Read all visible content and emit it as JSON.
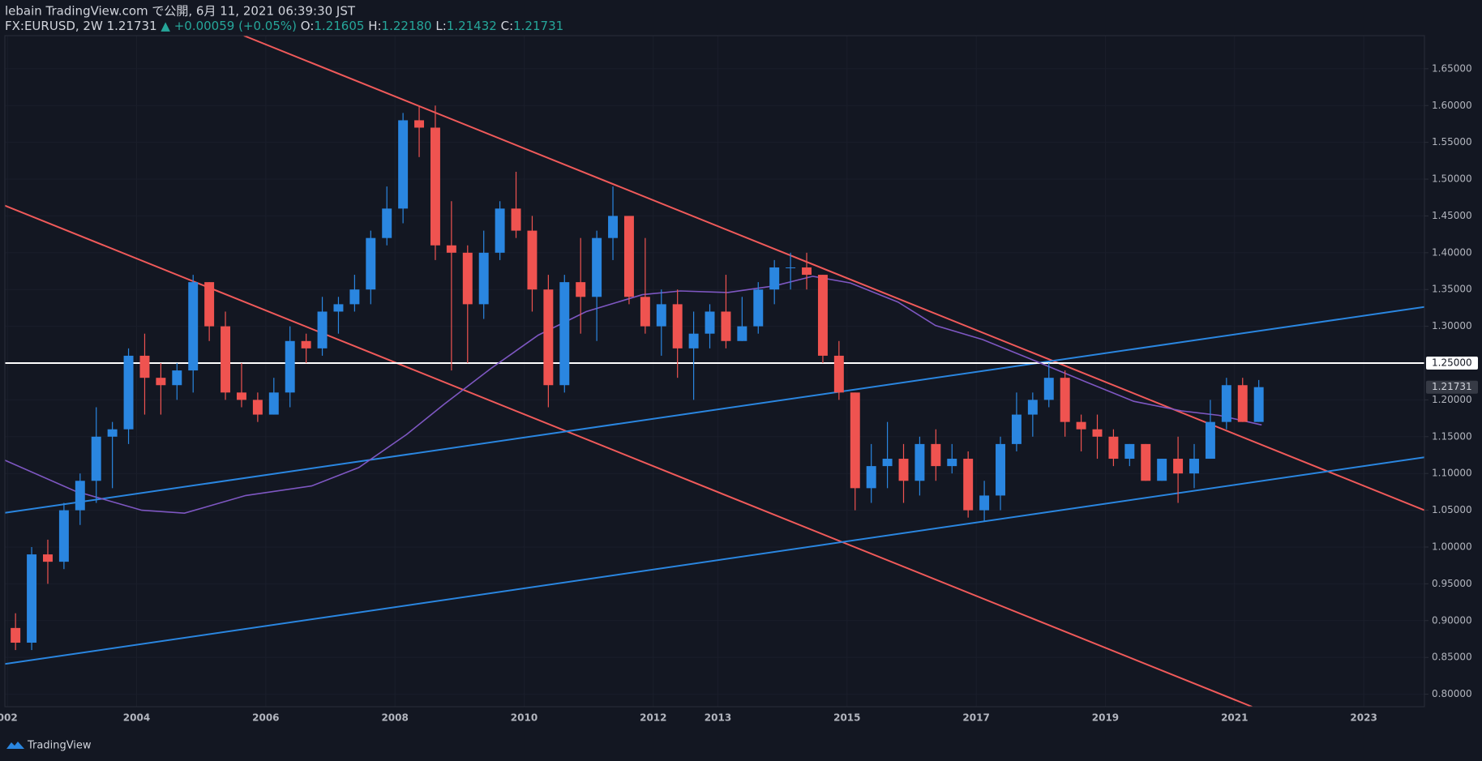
{
  "chart_data": {
    "type": "candlestick",
    "title": "lebain TradingView.com で公開, 6月 11, 2021 06:39:30 JST",
    "header": {
      "symbol": "FX:EURUSD, 2W",
      "price": "1.21731",
      "change": "▲ +0.00059 (+0.05%)",
      "ohlc": [
        {
          "label": "O:",
          "value": "1.21605"
        },
        {
          "label": "H:",
          "value": "1.22180"
        },
        {
          "label": "L:",
          "value": "1.21432"
        },
        {
          "label": "C:",
          "value": "1.21731"
        }
      ]
    },
    "brand": "TradingView",
    "up_color": "#2a86e0",
    "down_color": "#ef5350",
    "xlim": [
      2001.96,
      2023.94
    ],
    "ylim": [
      0.783,
      1.695
    ],
    "grid": true,
    "xticks": [
      {
        "value": 2002,
        "label": "002"
      },
      2004,
      2006,
      2008,
      2010,
      2012,
      2013,
      2015,
      2017,
      2019,
      2021,
      2023
    ],
    "yticks": [
      {
        "value": 0.8,
        "label": "0.80000"
      },
      {
        "value": 0.85,
        "label": "0.85000"
      },
      {
        "value": 0.9,
        "label": "0.90000"
      },
      {
        "value": 0.95,
        "label": "0.95000"
      },
      {
        "value": 1.0,
        "label": "1.00000"
      },
      {
        "value": 1.05,
        "label": "1.05000"
      },
      {
        "value": 1.1,
        "label": "1.10000"
      },
      {
        "value": 1.15,
        "label": "1.15000"
      },
      {
        "value": 1.2,
        "label": "1.20000"
      },
      {
        "value": 1.3,
        "label": "1.30000"
      },
      {
        "value": 1.35,
        "label": "1.35000"
      },
      {
        "value": 1.4,
        "label": "1.40000"
      },
      {
        "value": 1.45,
        "label": "1.45000"
      },
      {
        "value": 1.5,
        "label": "1.50000"
      },
      {
        "value": 1.55,
        "label": "1.55000"
      },
      {
        "value": 1.6,
        "label": "1.60000"
      },
      {
        "value": 1.65,
        "label": "1.65000"
      }
    ],
    "x": [
      2002.125,
      2002.375,
      2002.625,
      2002.875,
      2003.125,
      2003.375,
      2003.625,
      2003.875,
      2004.125,
      2004.375,
      2004.625,
      2004.875,
      2005.125,
      2005.375,
      2005.625,
      2005.875,
      2006.125,
      2006.375,
      2006.625,
      2006.875,
      2007.125,
      2007.375,
      2007.625,
      2007.875,
      2008.125,
      2008.375,
      2008.625,
      2008.875,
      2009.125,
      2009.375,
      2009.625,
      2009.875,
      2010.125,
      2010.375,
      2010.625,
      2010.875,
      2011.125,
      2011.375,
      2011.625,
      2011.875,
      2012.125,
      2012.375,
      2012.625,
      2012.875,
      2013.125,
      2013.375,
      2013.625,
      2013.875,
      2014.125,
      2014.375,
      2014.625,
      2014.875,
      2015.125,
      2015.375,
      2015.625,
      2015.875,
      2016.125,
      2016.375,
      2016.625,
      2016.875,
      2017.125,
      2017.375,
      2017.625,
      2017.875,
      2018.125,
      2018.375,
      2018.625,
      2018.875,
      2019.125,
      2019.375,
      2019.625,
      2019.875,
      2020.125,
      2020.375,
      2020.625,
      2020.875,
      2021.125,
      2021.375
    ],
    "open": [
      0.89,
      0.87,
      0.99,
      0.98,
      1.05,
      1.09,
      1.15,
      1.16,
      1.26,
      1.23,
      1.22,
      1.24,
      1.36,
      1.3,
      1.21,
      1.2,
      1.18,
      1.21,
      1.28,
      1.27,
      1.32,
      1.33,
      1.35,
      1.42,
      1.46,
      1.58,
      1.57,
      1.41,
      1.4,
      1.33,
      1.4,
      1.46,
      1.43,
      1.35,
      1.22,
      1.36,
      1.34,
      1.42,
      1.45,
      1.34,
      1.3,
      1.33,
      1.27,
      1.29,
      1.32,
      1.28,
      1.3,
      1.35,
      1.38,
      1.38,
      1.37,
      1.26,
      1.21,
      1.08,
      1.11,
      1.12,
      1.09,
      1.14,
      1.11,
      1.12,
      1.05,
      1.07,
      1.14,
      1.18,
      1.2,
      1.23,
      1.17,
      1.16,
      1.15,
      1.12,
      1.14,
      1.09,
      1.12,
      1.1,
      1.12,
      1.17,
      1.22,
      1.17
    ],
    "high": [
      0.91,
      1.0,
      1.01,
      1.06,
      1.1,
      1.19,
      1.17,
      1.27,
      1.29,
      1.25,
      1.25,
      1.37,
      1.36,
      1.32,
      1.25,
      1.21,
      1.23,
      1.3,
      1.29,
      1.34,
      1.34,
      1.37,
      1.43,
      1.49,
      1.59,
      1.6,
      1.6,
      1.47,
      1.41,
      1.43,
      1.47,
      1.51,
      1.45,
      1.37,
      1.37,
      1.42,
      1.43,
      1.49,
      1.45,
      1.42,
      1.35,
      1.35,
      1.32,
      1.33,
      1.37,
      1.34,
      1.36,
      1.39,
      1.4,
      1.4,
      1.37,
      1.28,
      1.21,
      1.14,
      1.17,
      1.14,
      1.15,
      1.16,
      1.14,
      1.13,
      1.09,
      1.15,
      1.21,
      1.21,
      1.25,
      1.24,
      1.18,
      1.18,
      1.16,
      1.14,
      1.14,
      1.12,
      1.15,
      1.14,
      1.2,
      1.23,
      1.23,
      1.227
    ],
    "low": [
      0.86,
      0.86,
      0.95,
      0.97,
      1.03,
      1.06,
      1.08,
      1.14,
      1.18,
      1.18,
      1.2,
      1.21,
      1.28,
      1.2,
      1.19,
      1.17,
      1.18,
      1.19,
      1.25,
      1.26,
      1.29,
      1.32,
      1.33,
      1.41,
      1.44,
      1.53,
      1.39,
      1.24,
      1.25,
      1.31,
      1.39,
      1.42,
      1.32,
      1.19,
      1.21,
      1.29,
      1.28,
      1.39,
      1.33,
      1.29,
      1.26,
      1.23,
      1.2,
      1.27,
      1.27,
      1.28,
      1.29,
      1.33,
      1.35,
      1.35,
      1.25,
      1.2,
      1.05,
      1.06,
      1.08,
      1.06,
      1.07,
      1.09,
      1.1,
      1.04,
      1.035,
      1.05,
      1.13,
      1.15,
      1.19,
      1.15,
      1.13,
      1.12,
      1.11,
      1.11,
      1.09,
      1.09,
      1.06,
      1.08,
      1.12,
      1.16,
      1.17,
      1.17
    ],
    "close": [
      0.87,
      0.99,
      0.98,
      1.05,
      1.09,
      1.15,
      1.16,
      1.26,
      1.23,
      1.22,
      1.24,
      1.36,
      1.3,
      1.21,
      1.2,
      1.18,
      1.21,
      1.28,
      1.27,
      1.32,
      1.33,
      1.35,
      1.42,
      1.46,
      1.58,
      1.57,
      1.41,
      1.4,
      1.33,
      1.4,
      1.46,
      1.43,
      1.35,
      1.22,
      1.36,
      1.34,
      1.42,
      1.45,
      1.34,
      1.3,
      1.33,
      1.27,
      1.29,
      1.32,
      1.28,
      1.3,
      1.35,
      1.38,
      1.38,
      1.37,
      1.26,
      1.21,
      1.08,
      1.11,
      1.12,
      1.09,
      1.14,
      1.11,
      1.12,
      1.05,
      1.07,
      1.14,
      1.18,
      1.2,
      1.23,
      1.17,
      1.16,
      1.15,
      1.12,
      1.14,
      1.09,
      1.12,
      1.1,
      1.12,
      1.17,
      1.22,
      1.17,
      1.21731
    ],
    "moving_average": {
      "color": "#7e57c2",
      "x": [
        2001.96,
        2003.05,
        2004.08,
        2004.74,
        2005.69,
        2006.71,
        2007.44,
        2008.18,
        2008.76,
        2009.49,
        2010.22,
        2010.96,
        2011.83,
        2012.42,
        2013.15,
        2013.88,
        2014.47,
        2015.05,
        2015.79,
        2016.37,
        2017.1,
        2017.83,
        2018.71,
        2019.44,
        2020.18,
        2020.76,
        2021.42
      ],
      "y": [
        1.118,
        1.076,
        1.05,
        1.046,
        1.07,
        1.083,
        1.108,
        1.153,
        1.194,
        1.243,
        1.288,
        1.32,
        1.343,
        1.348,
        1.346,
        1.355,
        1.368,
        1.359,
        1.333,
        1.301,
        1.282,
        1.256,
        1.224,
        1.198,
        1.185,
        1.179,
        1.166
      ]
    },
    "trend_lines": [
      {
        "color": "#f05a5a",
        "x": [
          2005.66,
          2023.94
        ],
        "y": [
          1.695,
          1.05
        ]
      },
      {
        "color": "#f05a5a",
        "x": [
          2001.96,
          2021.27
        ],
        "y": [
          1.464,
          0.783
        ]
      },
      {
        "color": "#2a86e0",
        "x": [
          2001.96,
          2023.94
        ],
        "y": [
          1.0465,
          1.3264
        ]
      },
      {
        "color": "#2a86e0",
        "x": [
          2001.96,
          2023.94
        ],
        "y": [
          0.841,
          1.122
        ]
      },
      {
        "color": "#ffffff",
        "x": [
          2001.96,
          2023.94
        ],
        "y": [
          1.25,
          1.25
        ]
      }
    ],
    "price_labels": [
      {
        "value": 1.25,
        "label": "1.25000",
        "color": "#ffffff"
      },
      {
        "value": 1.21731,
        "label": "1.21731",
        "color": "#363a45"
      }
    ]
  }
}
